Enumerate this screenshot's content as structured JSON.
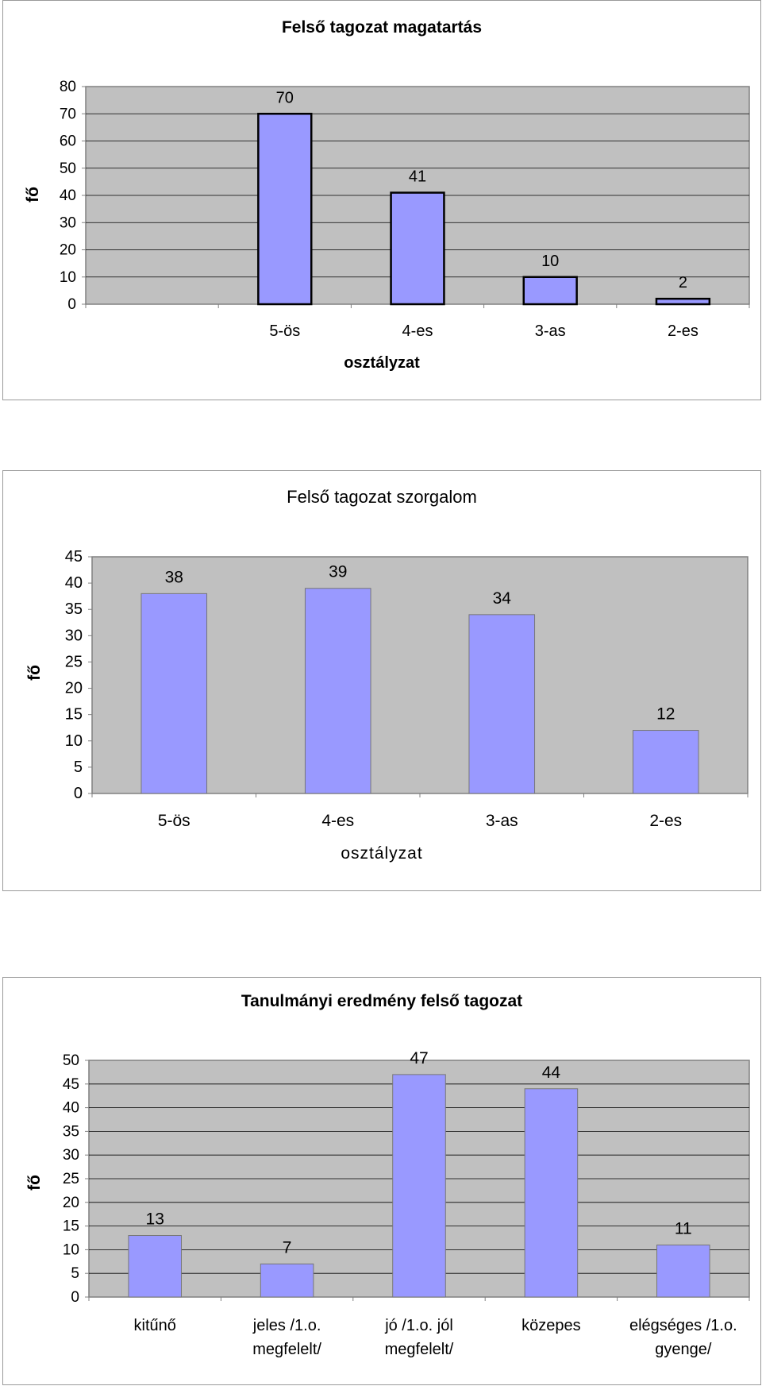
{
  "chart_data": [
    {
      "type": "bar",
      "title": "Felső tagozat magatartás",
      "xlabel": "osztályzat",
      "ylabel": "fő",
      "categories": [
        "",
        "5-ös",
        "4-es",
        "3-as",
        "2-es"
      ],
      "values": [
        null,
        70,
        41,
        10,
        2
      ],
      "data_labels": [
        "",
        "70",
        "41",
        "10",
        "2"
      ],
      "ylim": [
        0,
        80
      ],
      "yticks": [
        "0",
        "10",
        "20",
        "30",
        "40",
        "50",
        "60",
        "70",
        "80"
      ],
      "grid": true,
      "legend": "none",
      "colors": {
        "bar": "#9999ff",
        "plot_bg": "#c0c0c0",
        "grid": "#000000"
      }
    },
    {
      "type": "bar",
      "title": "Felső tagozat szorgalom",
      "xlabel": "osztályzat",
      "ylabel": "fő",
      "categories": [
        "5-ös",
        "4-es",
        "3-as",
        "2-es"
      ],
      "values": [
        38,
        39,
        34,
        12
      ],
      "data_labels": [
        "38",
        "39",
        "34",
        "12"
      ],
      "ylim": [
        0,
        45
      ],
      "yticks": [
        "0",
        "5",
        "10",
        "15",
        "20",
        "25",
        "30",
        "35",
        "40",
        "45"
      ],
      "grid": false,
      "legend": "none",
      "colors": {
        "bar": "#9999ff",
        "plot_bg": "#c0c0c0",
        "grid": "#000000"
      }
    },
    {
      "type": "bar",
      "title": "Tanulmányi eredmény felső tagozat",
      "xlabel": "",
      "ylabel": "fő",
      "categories": [
        "kitűnő",
        "jeles /1.o. megfelelt/",
        "jó /1.o. jól megfelelt/",
        "közepes",
        "elégséges /1.o. gyenge/"
      ],
      "category_lines": [
        [
          "kitűnő"
        ],
        [
          "jeles /1.o.",
          "megfelelt/"
        ],
        [
          "jó /1.o. jól",
          "megfelelt/"
        ],
        [
          "közepes"
        ],
        [
          "elégséges /1.o.",
          "gyenge/"
        ]
      ],
      "values": [
        13,
        7,
        47,
        44,
        11
      ],
      "data_labels": [
        "13",
        "7",
        "47",
        "44",
        "11"
      ],
      "ylim": [
        0,
        50
      ],
      "yticks": [
        "0",
        "5",
        "10",
        "15",
        "20",
        "25",
        "30",
        "35",
        "40",
        "45",
        "50"
      ],
      "grid": true,
      "legend": "none",
      "colors": {
        "bar": "#9999ff",
        "plot_bg": "#c0c0c0",
        "grid": "#000000"
      }
    }
  ]
}
